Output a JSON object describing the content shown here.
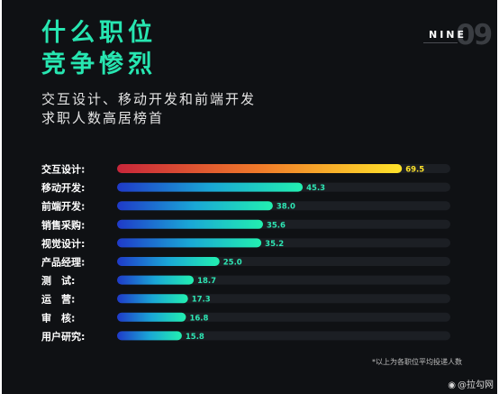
{
  "header": {
    "title_line1": "什么职位",
    "title_line2": "竞争惨烈",
    "subtitle_line1": "交互设计、移动开发和前端开发",
    "subtitle_line2": "求职人数高居榜首",
    "badge_text": "NINE",
    "badge_number": "09"
  },
  "footnote": "*以上为各职位平均投递人数",
  "watermark": "@拉勾网",
  "chart_data": {
    "type": "bar",
    "orientation": "horizontal",
    "title": "",
    "xlabel": "",
    "ylabel": "",
    "xlim": [
      0,
      80
    ],
    "categories": [
      "交互设计:",
      "移动开发:",
      "前端开发:",
      "销售采购:",
      "视觉设计:",
      "产品经理:",
      "测　试:",
      "运　营:",
      "审　核:",
      "用户研究:"
    ],
    "values": [
      69.5,
      45.3,
      38.0,
      35.6,
      35.2,
      25.0,
      18.7,
      17.3,
      16.8,
      15.8
    ],
    "value_labels": [
      "69.5",
      "45.3",
      "38.0",
      "35.6",
      "35.2",
      "25.0",
      "18.7",
      "17.3",
      "16.8",
      "15.8"
    ],
    "colors": {
      "top_bar": [
        "#c8263a",
        "#f07a2a",
        "#ffe32a"
      ],
      "bars": [
        "#1f3ac9",
        "#1aa7d6",
        "#22f0b0"
      ],
      "track": "#1c1f24",
      "value_label": "#2ee6b4",
      "top_value_label": "#ffe32a",
      "category_label": "#ffffff"
    }
  }
}
